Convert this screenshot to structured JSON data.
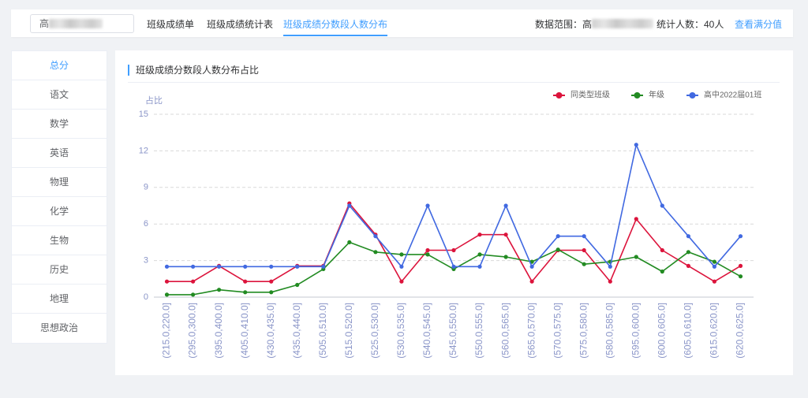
{
  "top_bar": {
    "class_select": {
      "value": "高"
    },
    "tabs": [
      {
        "label": "班级成绩单",
        "active": false
      },
      {
        "label": "班级成绩统计表",
        "active": false
      },
      {
        "label": "班级成绩分数段人数分布",
        "active": true
      }
    ],
    "data_range_label": "数据范围：高",
    "student_count_label": "统计人数：40人",
    "full_score_link": "查看满分值"
  },
  "sidebar": {
    "items": [
      {
        "label": "总分",
        "active": true
      },
      {
        "label": "语文",
        "active": false
      },
      {
        "label": "数学",
        "active": false
      },
      {
        "label": "英语",
        "active": false
      },
      {
        "label": "物理",
        "active": false
      },
      {
        "label": "化学",
        "active": false
      },
      {
        "label": "生物",
        "active": false
      },
      {
        "label": "历史",
        "active": false
      },
      {
        "label": "地理",
        "active": false
      },
      {
        "label": "思想政治",
        "active": false
      }
    ]
  },
  "panel": {
    "title": "班级成绩分数段人数分布占比"
  },
  "colors": {
    "accent": "#409eff",
    "text": "#303133",
    "muted_text": "#606266",
    "axis_label": "#8a95c8",
    "legend_text": "#666666",
    "page_background": "#f0f2f5"
  },
  "chart_data": {
    "type": "line",
    "ylabel": "占比",
    "ylim": [
      0,
      15
    ],
    "yticks": [
      0,
      3,
      6,
      9,
      12,
      15
    ],
    "grid": "horizontal dashed",
    "legend": "top-right",
    "categories": [
      "(215.0,220.0]",
      "(295.0,300.0]",
      "(395.0,400.0]",
      "(405.0,410.0]",
      "(430.0,435.0]",
      "(435.0,440.0]",
      "(505.0,510.0]",
      "(515.0,520.0]",
      "(525.0,530.0]",
      "(530.0,535.0]",
      "(540.0,545.0]",
      "(545.0,550.0]",
      "(550.0,555.0]",
      "(560.0,565.0]",
      "(565.0,570.0]",
      "(570.0,575.0]",
      "(575.0,580.0]",
      "(580.0,585.0]",
      "(595.0,600.0]",
      "(600.0,605.0]",
      "(605.0,610.0]",
      "(615.0,620.0]",
      "(620.0,625.0]"
    ],
    "series": [
      {
        "name": "同类型班级",
        "color": "#dc143c",
        "values": [
          1.28,
          1.28,
          2.56,
          1.28,
          1.28,
          2.56,
          2.56,
          7.69,
          5.13,
          1.28,
          3.85,
          3.85,
          5.13,
          5.13,
          1.28,
          3.85,
          3.85,
          1.28,
          6.41,
          3.85,
          2.56,
          1.28,
          2.56
        ]
      },
      {
        "name": "年级",
        "color": "#228b22",
        "values": [
          0.2,
          0.2,
          0.6,
          0.4,
          0.4,
          1.0,
          2.3,
          4.5,
          3.7,
          3.5,
          3.5,
          2.3,
          3.5,
          3.3,
          2.9,
          3.9,
          2.7,
          2.9,
          3.3,
          2.1,
          3.7,
          2.9,
          1.7
        ]
      },
      {
        "name": "高中2022届01班",
        "color": "#4169e1",
        "values": [
          2.5,
          2.5,
          2.5,
          2.5,
          2.5,
          2.5,
          2.5,
          7.5,
          5.0,
          2.5,
          7.5,
          2.5,
          2.5,
          7.5,
          2.5,
          5.0,
          5.0,
          2.5,
          12.5,
          7.5,
          5.0,
          2.5,
          5.0
        ]
      }
    ]
  }
}
